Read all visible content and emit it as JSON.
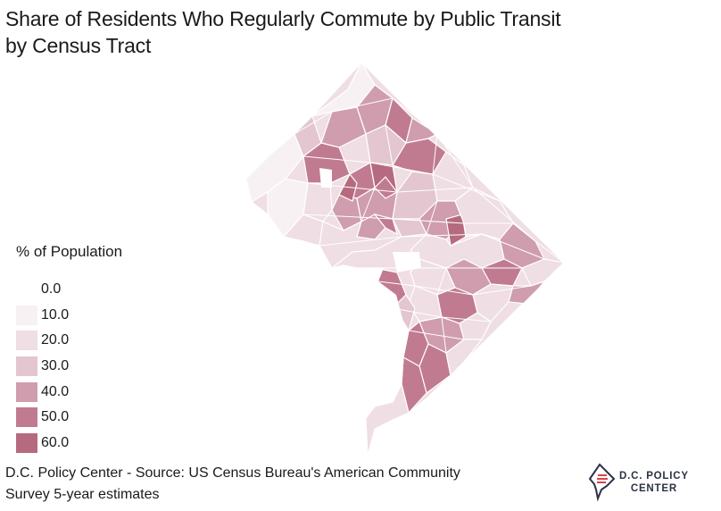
{
  "title": {
    "line1": "Share of Residents Who Regularly Commute by Public Transit",
    "line2": "by Census Tract"
  },
  "legend": {
    "title": "% of Population",
    "items": [
      {
        "label": "0.0",
        "color": "#ffffff"
      },
      {
        "label": "10.0",
        "color": "#f7f1f3"
      },
      {
        "label": "20.0",
        "color": "#efdee3"
      },
      {
        "label": "30.0",
        "color": "#e3c6cf"
      },
      {
        "label": "40.0",
        "color": "#cf9dad"
      },
      {
        "label": "50.0",
        "color": "#c17b91"
      },
      {
        "label": "60.0",
        "color": "#b66a80"
      }
    ]
  },
  "source": {
    "line1": "D.C. Policy Center - Source: US Census Bureau's American Community",
    "line2": "Survey 5-year estimates"
  },
  "logo": {
    "line1": "D.C. POLICY",
    "line2": "CENTER"
  }
}
